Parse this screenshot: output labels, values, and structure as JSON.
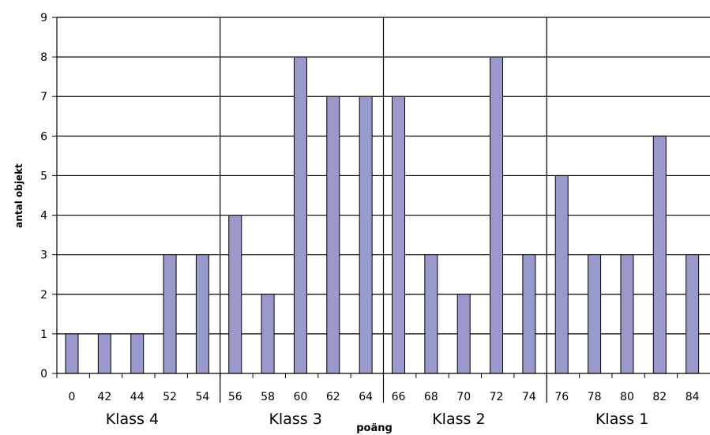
{
  "chart_data": {
    "type": "bar",
    "categories": [
      "0",
      "42",
      "44",
      "52",
      "54",
      "56",
      "58",
      "60",
      "62",
      "64",
      "66",
      "68",
      "70",
      "72",
      "74",
      "76",
      "78",
      "80",
      "82",
      "84"
    ],
    "values": [
      1,
      1,
      1,
      3,
      3,
      4,
      2,
      8,
      7,
      7,
      7,
      3,
      2,
      8,
      3,
      5,
      3,
      3,
      6,
      3
    ],
    "groups": [
      {
        "label": "Klass 4",
        "categories": [
          "0",
          "42",
          "44",
          "52",
          "54"
        ]
      },
      {
        "label": "Klass 3",
        "categories": [
          "56",
          "58",
          "60",
          "62",
          "64"
        ]
      },
      {
        "label": "Klass 2",
        "categories": [
          "66",
          "68",
          "70",
          "72",
          "74"
        ]
      },
      {
        "label": "Klass 1",
        "categories": [
          "76",
          "78",
          "80",
          "82",
          "84"
        ]
      }
    ],
    "title": "",
    "xlabel": "poäng",
    "ylabel": "antal objekt",
    "ylim": [
      0,
      9
    ],
    "yticks": [
      "0",
      "1",
      "2",
      "3",
      "4",
      "5",
      "6",
      "7",
      "8",
      "9"
    ],
    "grid": true,
    "bar_color": "#9999cc"
  }
}
